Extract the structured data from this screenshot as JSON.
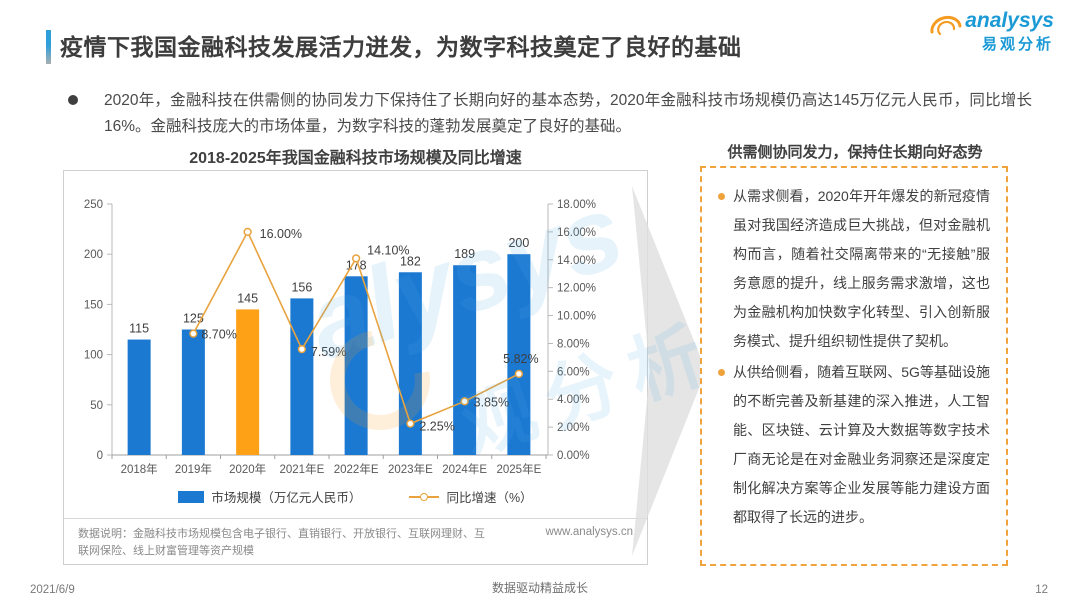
{
  "header": {
    "title": "疫情下我国金融科技发展活力迸发，为数字科技奠定了良好的基础",
    "logo_en": "analysys",
    "logo_cn": "易观分析"
  },
  "summary": {
    "text": "2020年，金融科技在供需侧的协同发力下保持住了长期向好的基本态势，2020年金融科技市场规模仍高达145万亿元人民币，同比增长16%。金融科技庞大的市场体量，为数字科技的蓬勃发展奠定了良好的基础。"
  },
  "chart": {
    "note": "数据说明：金融科技市场规模包含电子银行、直销银行、开放银行、互联网理财、互联网保险、线上财富管理等资产规模",
    "source_url": "www.analysys.cn"
  },
  "chart_data": {
    "type": "bar",
    "title": "2018-2025年我国金融科技市场规模及同比增速",
    "categories": [
      "2018年",
      "2019年",
      "2020年",
      "2021年E",
      "2022年E",
      "2023年E",
      "2024年E",
      "2025年E"
    ],
    "series": [
      {
        "name": "市场规模（万亿元人民币）",
        "type": "bar",
        "values": [
          115,
          125,
          145,
          156,
          178,
          182,
          189,
          200
        ],
        "color": "#1c79d2",
        "highlight_index": 2,
        "highlight_color": "#ffa117"
      },
      {
        "name": "同比增速（%）",
        "type": "line",
        "values": [
          null,
          8.7,
          16.0,
          7.59,
          14.1,
          2.25,
          3.85,
          5.82
        ],
        "labels": [
          "",
          "8.70%",
          "16.00%",
          "7.59%",
          "14.10%",
          "2.25%",
          "3.85%",
          "5.82%"
        ],
        "color": "#e8a33e"
      }
    ],
    "left_axis": {
      "min": 0,
      "max": 250,
      "step": 50
    },
    "right_axis": {
      "min": 0,
      "max": 18,
      "step": 2,
      "suffix": "%"
    },
    "grid": false,
    "legend_position": "bottom"
  },
  "panel": {
    "title": "供需侧协同发力，保持住长期向好态势",
    "bullets": [
      {
        "text": "从需求侧看，2020年开年爆发的新冠疫情虽对我国经济造成巨大挑战，但对金融机构而言，随着社交隔离带来的“无接触”服务意愿的提升，线上服务需求激增，这也为金融机构加快数字化转型、引入创新服务模式、提升组织韧性提供了契机。"
      },
      {
        "text": "从供给侧看，随着互联网、5G等基础设施的不断完善及新基建的深入推进，人工智能、区块链、云计算及大数据等数字技术厂商无论是在对金融业务洞察还是深度定制化解决方案等企业发展等能力建设方面都取得了长远的进步。"
      }
    ]
  },
  "footer": {
    "date": "2021/6/9",
    "center": "数据驱动精益成长",
    "page": "12"
  }
}
